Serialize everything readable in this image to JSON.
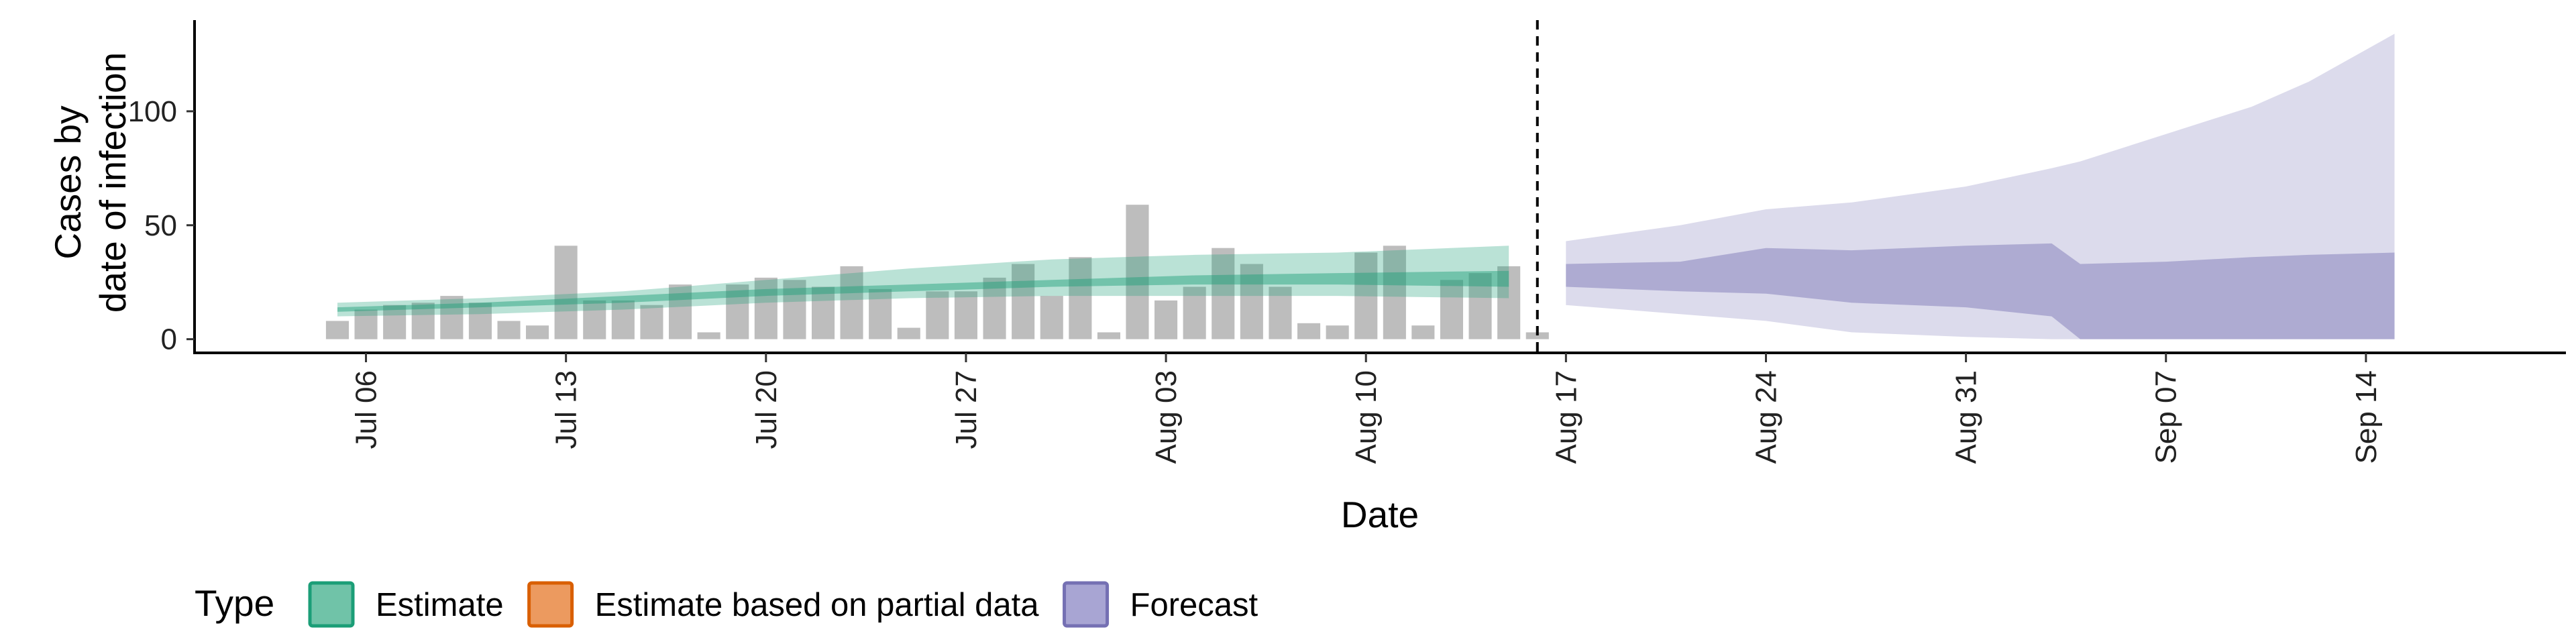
{
  "chart_data": {
    "type": "area",
    "title": "",
    "xlabel": "Date",
    "ylabel": [
      "Cases by",
      "date of infection"
    ],
    "yticks": [
      0,
      50,
      100
    ],
    "ylim": [
      -6,
      140
    ],
    "xticks": [
      {
        "date": "2020-07-06",
        "label": "Jul 06"
      },
      {
        "date": "2020-07-13",
        "label": "Jul 13"
      },
      {
        "date": "2020-07-20",
        "label": "Jul 20"
      },
      {
        "date": "2020-07-27",
        "label": "Jul 27"
      },
      {
        "date": "2020-08-03",
        "label": "Aug 03"
      },
      {
        "date": "2020-08-10",
        "label": "Aug 10"
      },
      {
        "date": "2020-08-17",
        "label": "Aug 17"
      },
      {
        "date": "2020-08-24",
        "label": "Aug 24"
      },
      {
        "date": "2020-08-31",
        "label": "Aug 31"
      },
      {
        "date": "2020-09-07",
        "label": "Sep 07"
      },
      {
        "date": "2020-09-14",
        "label": "Sep 14"
      }
    ],
    "xlim": [
      "2020-06-30",
      "2020-09-21"
    ],
    "forecast_start": "2020-08-16",
    "reported_cases": {
      "color": "#bdbdbd",
      "dates": [
        "2020-07-05",
        "2020-07-06",
        "2020-07-07",
        "2020-07-08",
        "2020-07-09",
        "2020-07-10",
        "2020-07-11",
        "2020-07-12",
        "2020-07-13",
        "2020-07-14",
        "2020-07-15",
        "2020-07-16",
        "2020-07-17",
        "2020-07-18",
        "2020-07-19",
        "2020-07-20",
        "2020-07-21",
        "2020-07-22",
        "2020-07-23",
        "2020-07-24",
        "2020-07-25",
        "2020-07-26",
        "2020-07-27",
        "2020-07-28",
        "2020-07-29",
        "2020-07-30",
        "2020-07-31",
        "2020-08-01",
        "2020-08-02",
        "2020-08-03",
        "2020-08-04",
        "2020-08-05",
        "2020-08-06",
        "2020-08-07",
        "2020-08-08",
        "2020-08-09",
        "2020-08-10",
        "2020-08-11",
        "2020-08-12",
        "2020-08-13",
        "2020-08-14",
        "2020-08-15",
        "2020-08-16"
      ],
      "values": [
        8,
        13,
        15,
        16,
        19,
        16,
        8,
        6,
        41,
        17,
        17,
        15,
        24,
        3,
        24,
        27,
        26,
        23,
        32,
        22,
        5,
        21,
        21,
        27,
        33,
        19,
        36,
        3,
        59,
        17,
        23,
        40,
        33,
        23,
        7,
        6,
        38,
        41,
        6,
        26,
        29,
        32,
        3
      ]
    },
    "series": [
      {
        "name": "Estimate",
        "color": "#1b9e77",
        "x": [
          "2020-07-05",
          "2020-07-10",
          "2020-07-15",
          "2020-07-20",
          "2020-07-25",
          "2020-07-30",
          "2020-08-04",
          "2020-08-09",
          "2020-08-15"
        ],
        "lower90": [
          10,
          11,
          13,
          16,
          18,
          19,
          19,
          19,
          18
        ],
        "upper90": [
          16,
          18,
          21,
          26,
          31,
          35,
          37,
          38,
          41
        ],
        "lower50": [
          12,
          14,
          16,
          19,
          21,
          23,
          24,
          24,
          23
        ],
        "upper50": [
          14,
          16,
          19,
          22,
          24,
          26,
          28,
          29,
          30
        ]
      },
      {
        "name": "Estimate based on partial data",
        "color": "#d95f02",
        "x": [],
        "lower90": [],
        "upper90": [],
        "lower50": [],
        "upper50": []
      },
      {
        "name": "Forecast",
        "color": "#7570b3",
        "x": [
          "2020-08-17",
          "2020-08-21",
          "2020-08-24",
          "2020-08-27",
          "2020-08-31",
          "2020-09-03",
          "2020-09-04",
          "2020-09-07",
          "2020-09-10",
          "2020-09-12",
          "2020-09-15"
        ],
        "lower90": [
          15,
          11,
          8,
          3,
          1,
          0,
          0,
          0,
          0,
          0,
          0
        ],
        "upper90": [
          43,
          50,
          57,
          60,
          67,
          75,
          78,
          90,
          102,
          113,
          134
        ],
        "lower50": [
          23,
          21,
          20,
          16,
          14,
          10,
          0,
          0,
          0,
          0,
          0
        ],
        "upper50": [
          33,
          34,
          40,
          39,
          41,
          42,
          33,
          34,
          36,
          37,
          38
        ]
      }
    ],
    "legend": {
      "title": "Type",
      "position": "bottom-left",
      "items": [
        {
          "label": "Estimate",
          "fill": "#70c3a8",
          "border": "#1b9e77"
        },
        {
          "label": "Estimate based on partial data",
          "fill": "#ec9a5f",
          "border": "#d95f02"
        },
        {
          "label": "Forecast",
          "fill": "#a8a5d3",
          "border": "#7570b3"
        }
      ]
    }
  }
}
